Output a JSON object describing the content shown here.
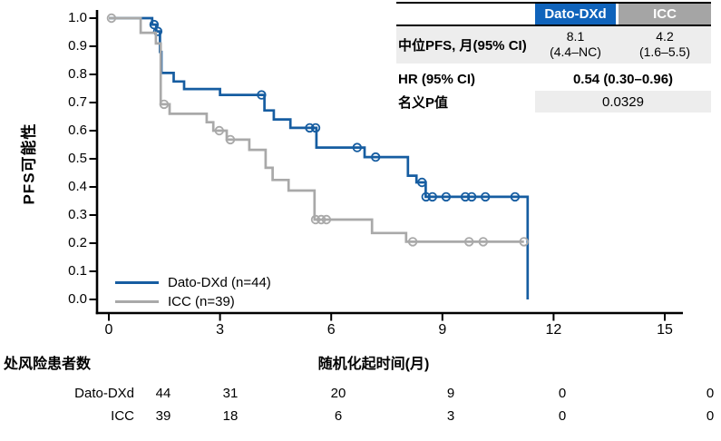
{
  "accents": {
    "dato_blue": "#165da1",
    "icc_gray": "#a9a9a9",
    "header_blue": "#0f63bb",
    "header_gray": "#a5a5a5",
    "row_shade": "#ededed"
  },
  "stats_table": {
    "col_dato": "Dato-DXd",
    "col_icc": "ICC",
    "median_label": "中位PFS, 月(95% CI)",
    "median_dato_line1": "8.1",
    "median_dato_line2": "(4.4–NC)",
    "median_icc_line1": "4.2",
    "median_icc_line2": "(1.6–5.5)",
    "hr_label": "HR (95% CI)",
    "hr_value": "0.54 (0.30–0.96)",
    "p_label": "名义P值",
    "p_value": "0.0329"
  },
  "legend": {
    "dato_label": "Dato-DXd (n=44)",
    "icc_label": "ICC (n=39)"
  },
  "chart_data": {
    "type": "line",
    "subtype": "kaplan-meier-step",
    "title": "",
    "xlabel": "随机化起时间(月)",
    "ylabel": "PFS可能性",
    "xlim": [
      0,
      15
    ],
    "ylim": [
      0.0,
      1.0
    ],
    "xticks": [
      0,
      3,
      6,
      9,
      12,
      15
    ],
    "yticks": [
      0.0,
      0.1,
      0.2,
      0.3,
      0.4,
      0.5,
      0.6,
      0.7,
      0.8,
      0.9,
      1.0
    ],
    "grid": false,
    "legend_position": "lower-left-inside",
    "series": [
      {
        "name": "Dato-DXd (n=44)",
        "color": "#165da1",
        "steps": [
          [
            0,
            1.0
          ],
          [
            1.17,
            0.977
          ],
          [
            1.28,
            0.953
          ],
          [
            1.38,
            0.88
          ],
          [
            1.42,
            0.805
          ],
          [
            1.75,
            0.775
          ],
          [
            2.03,
            0.748
          ],
          [
            3.0,
            0.727
          ],
          [
            4.2,
            0.672
          ],
          [
            4.45,
            0.64
          ],
          [
            4.9,
            0.61
          ],
          [
            5.6,
            0.54
          ],
          [
            6.9,
            0.506
          ],
          [
            8.07,
            0.44
          ],
          [
            8.3,
            0.416
          ],
          [
            8.55,
            0.365
          ],
          [
            11.3,
            0.0
          ]
        ],
        "censors": [
          [
            1.22,
            0.977
          ],
          [
            1.32,
            0.953
          ],
          [
            4.12,
            0.727
          ],
          [
            5.42,
            0.61
          ],
          [
            5.58,
            0.61
          ],
          [
            6.7,
            0.54
          ],
          [
            7.2,
            0.506
          ],
          [
            8.45,
            0.416
          ],
          [
            8.56,
            0.365
          ],
          [
            8.73,
            0.365
          ],
          [
            9.1,
            0.365
          ],
          [
            9.62,
            0.365
          ],
          [
            9.79,
            0.365
          ],
          [
            10.16,
            0.365
          ],
          [
            10.96,
            0.365
          ]
        ]
      },
      {
        "name": "ICC (n=39)",
        "color": "#a9a9a9",
        "steps": [
          [
            0,
            1.0
          ],
          [
            0.86,
            0.948
          ],
          [
            1.27,
            0.91
          ],
          [
            1.4,
            0.694
          ],
          [
            1.64,
            0.66
          ],
          [
            2.64,
            0.63
          ],
          [
            2.82,
            0.6
          ],
          [
            3.18,
            0.568
          ],
          [
            3.79,
            0.532
          ],
          [
            4.23,
            0.468
          ],
          [
            4.42,
            0.425
          ],
          [
            4.85,
            0.387
          ],
          [
            5.55,
            0.284
          ],
          [
            7.1,
            0.236
          ],
          [
            8.02,
            0.205
          ],
          [
            11.2,
            0.205
          ]
        ],
        "censors": [
          [
            0.07,
            1.0
          ],
          [
            1.49,
            0.694
          ],
          [
            2.98,
            0.6
          ],
          [
            3.28,
            0.568
          ],
          [
            5.58,
            0.284
          ],
          [
            5.73,
            0.284
          ],
          [
            5.87,
            0.284
          ],
          [
            8.2,
            0.205
          ],
          [
            9.72,
            0.205
          ],
          [
            10.1,
            0.205
          ],
          [
            11.2,
            0.205
          ]
        ]
      }
    ],
    "at_risk": {
      "header": "处风险患者数",
      "times": [
        0,
        3,
        6,
        9,
        12,
        15
      ],
      "rows": [
        {
          "name": "Dato-DXd",
          "counts": [
            44,
            31,
            20,
            9,
            0,
            0
          ]
        },
        {
          "name": "ICC",
          "counts": [
            39,
            18,
            6,
            3,
            0,
            0
          ]
        }
      ]
    }
  }
}
